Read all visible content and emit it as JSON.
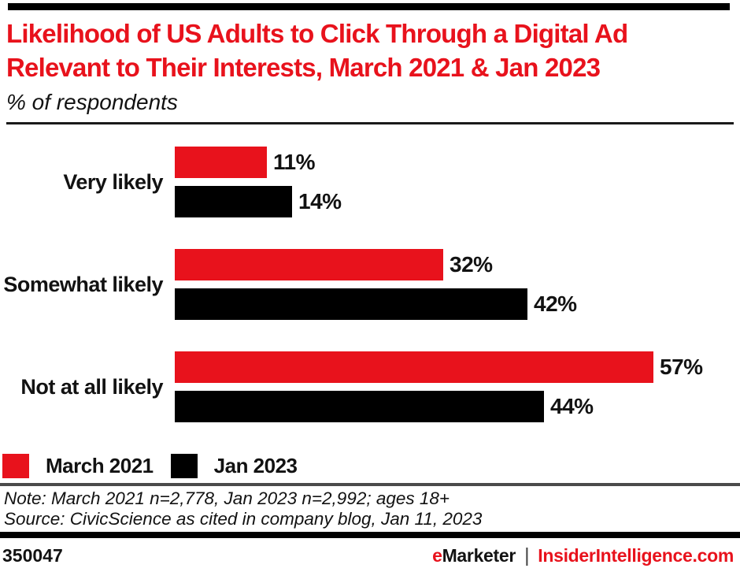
{
  "header": {
    "title_line1": "Likelihood of US Adults to Click Through a Digital Ad",
    "title_line2": "Relevant to Their Interests, March 2021 & Jan 2023",
    "subtitle": "% of respondents"
  },
  "chart_data": {
    "type": "bar",
    "orientation": "horizontal",
    "title": "Likelihood of US Adults to Click Through a Digital Ad Relevant to Their Interests, March 2021 & Jan 2023",
    "subtitle": "% of respondents",
    "categories": [
      "Very likely",
      "Somewhat likely",
      "Not at all likely"
    ],
    "series": [
      {
        "name": "March 2021",
        "color": "#e8121c",
        "values": [
          11,
          32,
          57
        ]
      },
      {
        "name": "Jan 2023",
        "color": "#000000",
        "values": [
          14,
          42,
          44
        ]
      }
    ],
    "value_suffix": "%",
    "xlim": [
      0,
      62
    ],
    "grid": false,
    "legend_position": "bottom"
  },
  "legend": [
    {
      "label": "March 2021",
      "color": "#e8121c"
    },
    {
      "label": "Jan 2023",
      "color": "#000000"
    }
  ],
  "footnotes": {
    "note": "Note: March 2021 n=2,778, Jan 2023 n=2,992; ages 18+",
    "source": "Source: CivicScience as cited in company blog, Jan 11, 2023"
  },
  "footer": {
    "id": "350047",
    "brand_primary_prefix": "e",
    "brand_primary_rest": "Marketer",
    "separator": "|",
    "brand_secondary": "InsiderIntelligence.com"
  },
  "colors": {
    "accent_red": "#e8121c",
    "bar_black": "#000000",
    "divider_gray": "#4a4a4a"
  }
}
